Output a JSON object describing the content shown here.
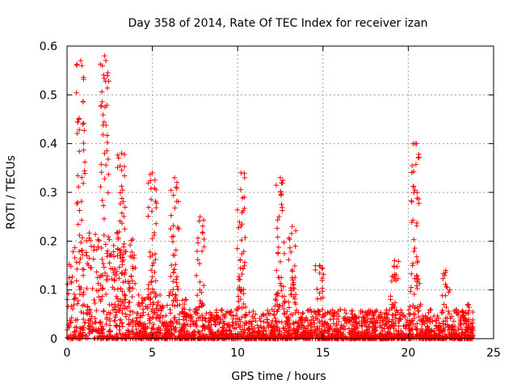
{
  "chart_data": {
    "type": "scatter",
    "title": "Day 358 of 2014, Rate Of TEC Index for receiver izan",
    "xlabel": "GPS time / hours",
    "ylabel": "ROTI / TECUs",
    "xlim": [
      0,
      25
    ],
    "ylim": [
      0,
      0.6
    ],
    "xticks": [
      0,
      5,
      10,
      15,
      20,
      25
    ],
    "yticks": [
      0,
      0.1,
      0.2,
      0.3,
      0.4,
      0.5,
      0.6
    ],
    "xtick_labels": [
      "0",
      "5",
      "10",
      "15",
      "20",
      "25"
    ],
    "ytick_labels": [
      "0",
      "0.1",
      "0.2",
      "0.3",
      "0.4",
      "0.5",
      "0.6"
    ],
    "grid": true,
    "marker": "+",
    "color": "#ff0000",
    "x_data_range": [
      0,
      23.8
    ],
    "spikes": [
      {
        "x": 0.8,
        "y_max": 0.57
      },
      {
        "x": 2.2,
        "y_max": 0.58
      },
      {
        "x": 3.2,
        "y_max": 0.38
      },
      {
        "x": 5.0,
        "y_max": 0.34
      },
      {
        "x": 6.3,
        "y_max": 0.33
      },
      {
        "x": 7.8,
        "y_max": 0.25
      },
      {
        "x": 10.2,
        "y_max": 0.34
      },
      {
        "x": 12.5,
        "y_max": 0.33
      },
      {
        "x": 13.2,
        "y_max": 0.23
      },
      {
        "x": 14.8,
        "y_max": 0.15
      },
      {
        "x": 19.2,
        "y_max": 0.16
      },
      {
        "x": 20.4,
        "y_max": 0.4
      },
      {
        "x": 22.2,
        "y_max": 0.14
      },
      {
        "x": 23.5,
        "y_max": 0.07
      }
    ]
  }
}
